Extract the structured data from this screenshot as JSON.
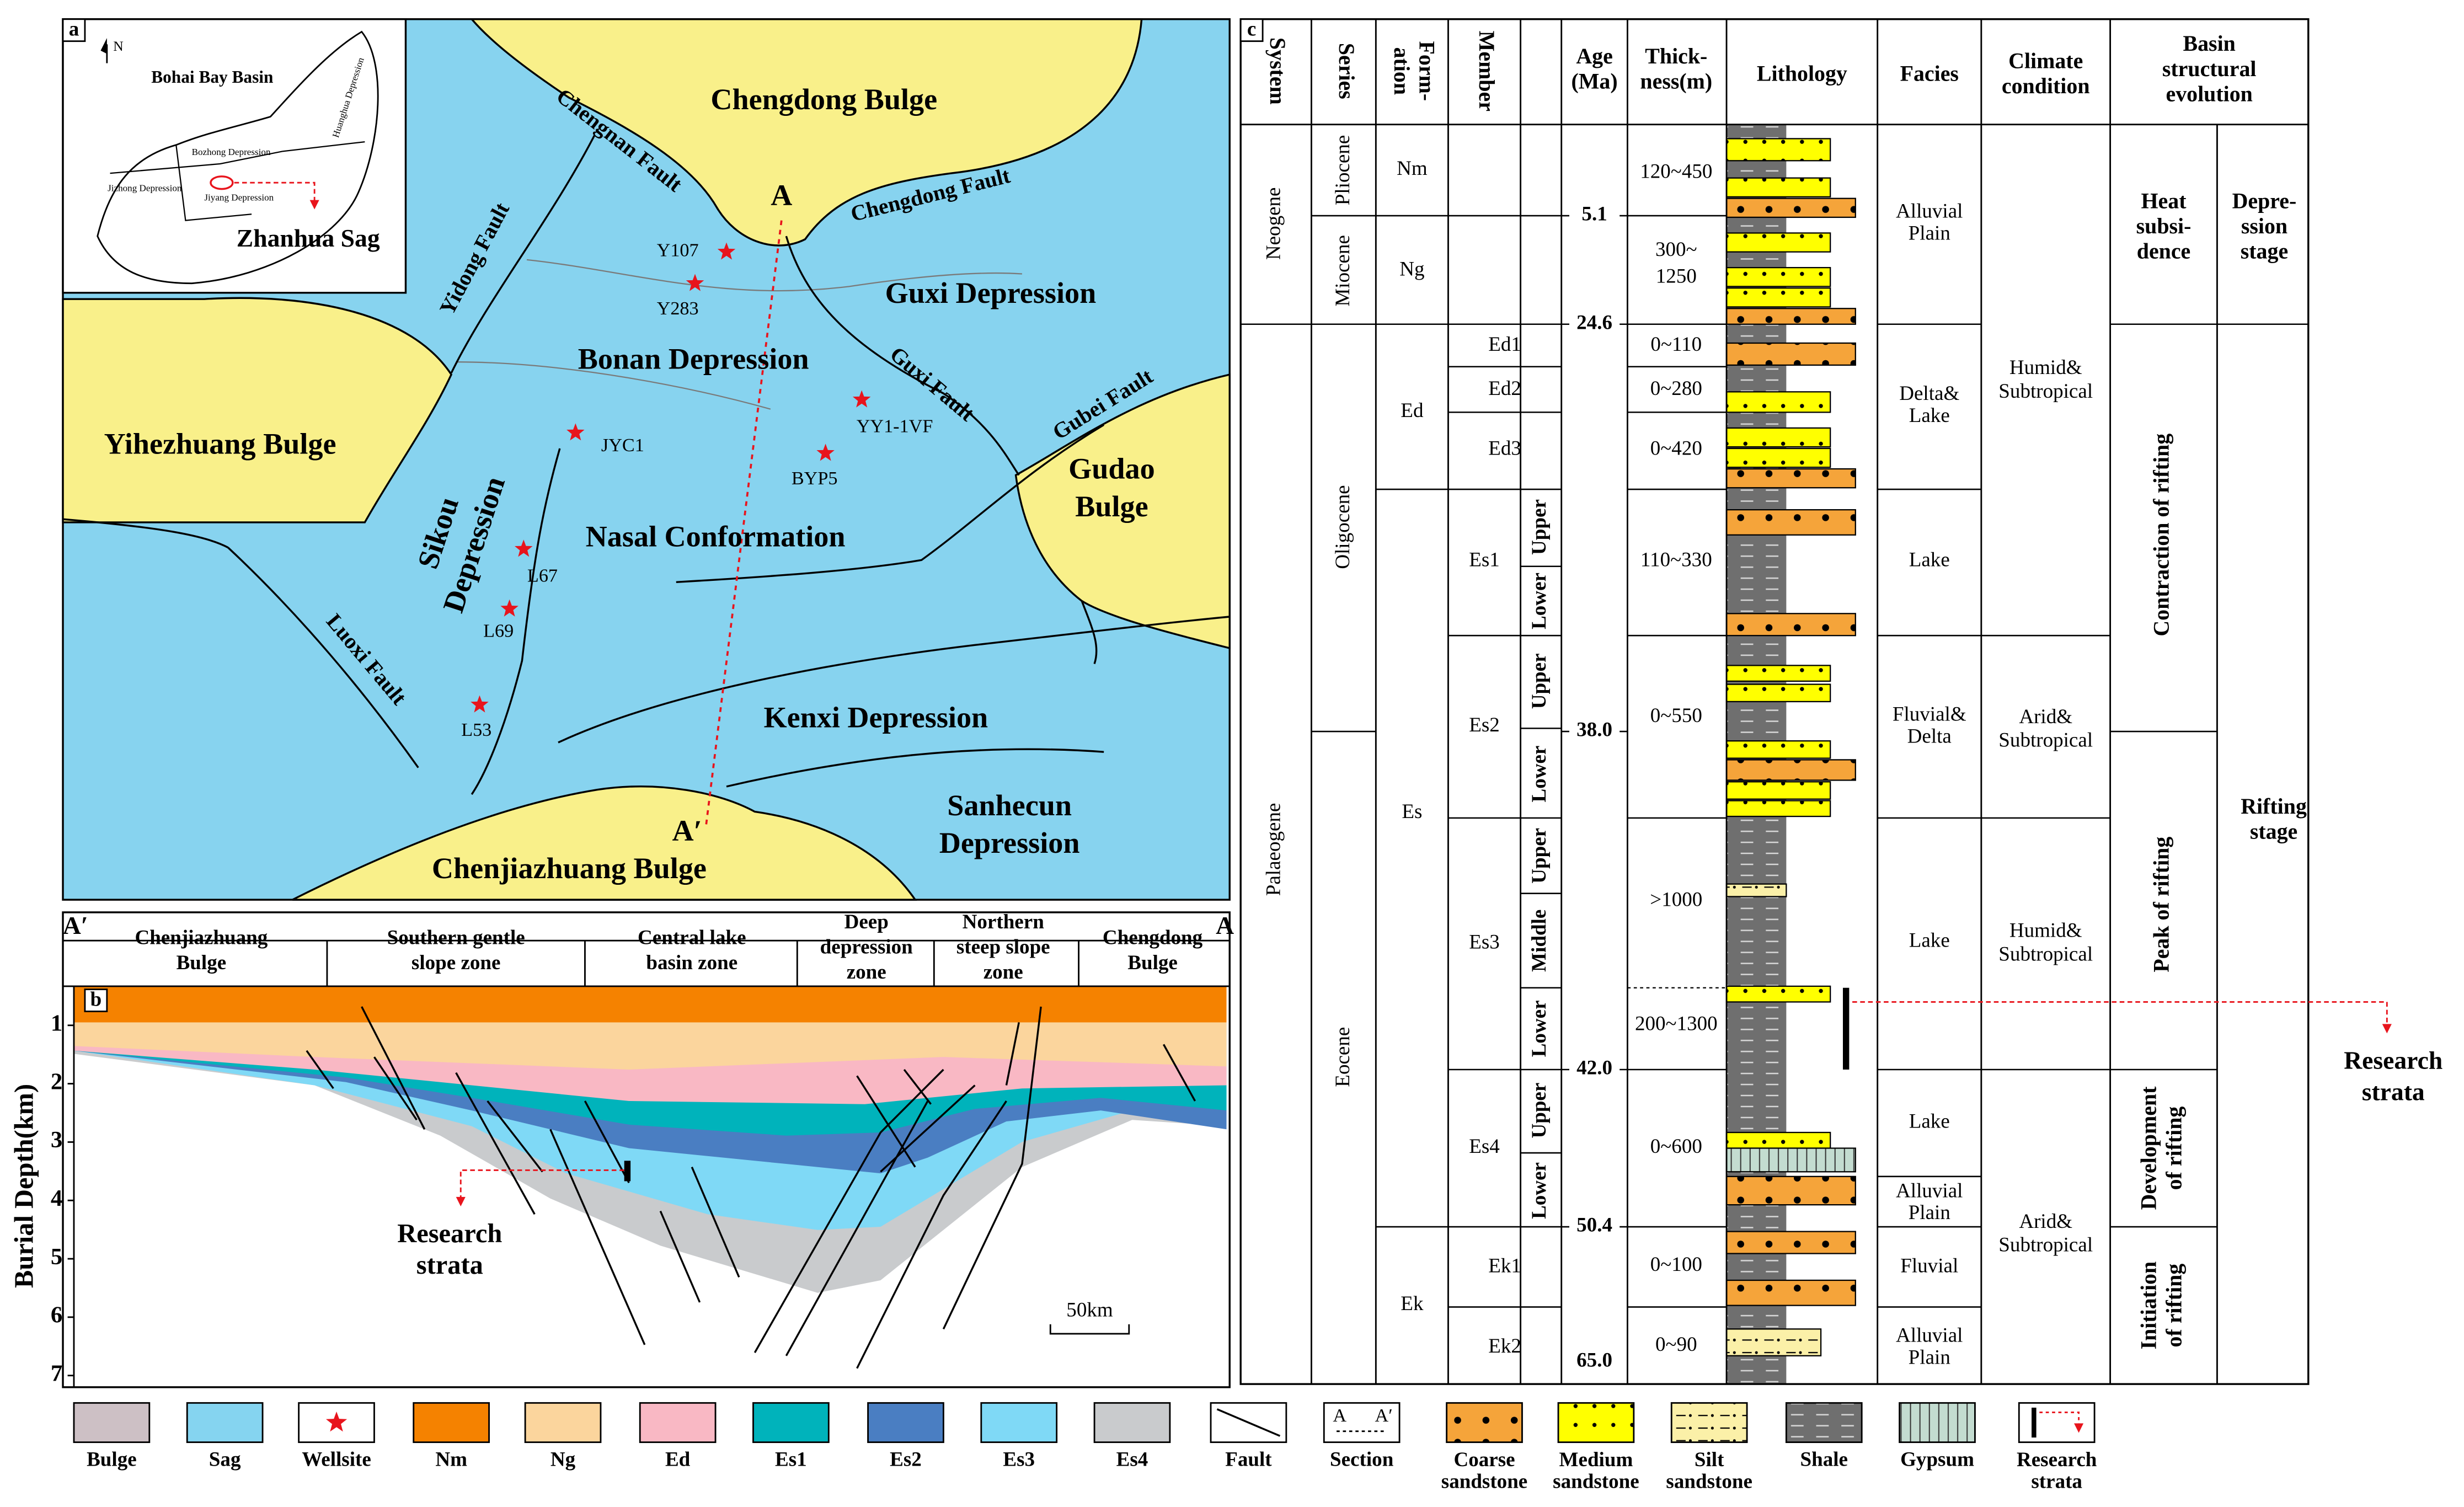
{
  "panel_a": {
    "label": "a",
    "inset": {
      "north": "N",
      "title": "Bohai Bay Basin",
      "depressions": [
        "Huanghua Depression",
        "Bozhong Depression",
        "Jizhong Depression",
        "Jiyang Depression"
      ],
      "sag": "Zhanhua Sag"
    },
    "units": [
      "Chengdong Bulge",
      "Guxi Depression",
      "Bonan Depression",
      "Yihezhuang Bulge",
      [
        "Gudao",
        "Bulge"
      ],
      [
        "Sikou",
        "Depression"
      ],
      "Nasal Conformation",
      "Kenxi Depression",
      [
        "Sanhecun",
        "Depression"
      ],
      "Chenjiazhuang Bulge"
    ],
    "faults": [
      "Chengnan Fault",
      "Chengdong Fault",
      "Yidong Fault",
      "Guxi Fault",
      "Gubei Fault",
      "Luoxi Fault"
    ],
    "section": [
      "A",
      "A′"
    ],
    "wells": [
      "Y107",
      "Y283",
      "JYC1",
      "YY1-1VF",
      "BYP5",
      "L67",
      "L69",
      "L53"
    ]
  },
  "panel_b": {
    "label": "b",
    "ends": [
      "A′",
      "A"
    ],
    "zones": [
      [
        "Chenjiazhuang",
        "Bulge"
      ],
      [
        "Southern gentle",
        "slope zone"
      ],
      [
        "Central lake",
        "basin zone"
      ],
      [
        "Deep",
        "depression",
        "zone"
      ],
      [
        "Northern",
        "steep slope",
        "zone"
      ],
      [
        "Chengdong",
        "Bulge"
      ]
    ],
    "depth_axis": {
      "label": "Burial Depth(km)",
      "lim": [
        0.33,
        7.2
      ],
      "ticks": [
        1,
        2,
        3,
        4,
        5,
        6,
        7
      ]
    },
    "annotation": [
      "Research",
      "strata"
    ],
    "scale": "50km"
  },
  "panel_c": {
    "label": "c",
    "headers": [
      "System",
      "Series",
      [
        "Form-",
        "ation"
      ],
      "Member",
      [
        "Age",
        "(Ma)"
      ],
      [
        "Thick-",
        "ness(m)"
      ],
      "Lithology",
      "Facies",
      [
        "Climate",
        "condition"
      ],
      [
        "Basin",
        "structural",
        "evolution"
      ]
    ],
    "systems": [
      "Neogene",
      "Palaeogene"
    ],
    "series": [
      "Pliocene",
      "Miocene",
      "Oligocene",
      "Eocene"
    ],
    "formations": [
      "Nm",
      "Ng",
      "Ed",
      "Es",
      "Ek"
    ],
    "members": [
      "Ed1",
      "Ed2",
      "Ed3",
      "Es1",
      "Es2",
      "Es3",
      "Es4",
      "Ek1",
      "Ek2"
    ],
    "submembers": [
      "Upper",
      "Lower",
      "Upper",
      "Lower",
      "Upper",
      "Middle",
      "Lower",
      "Upper",
      "Lower"
    ],
    "ages": [
      "5.1",
      "24.6",
      "38.0",
      "42.0",
      "50.4",
      "65.0"
    ],
    "thickness": [
      "120~450",
      [
        "300~",
        "1250"
      ],
      "0~110",
      "0~280",
      "0~420",
      "110~330",
      "0~550",
      ">1000",
      "200~1300",
      "0~600",
      "0~100",
      "0~90"
    ],
    "facies": [
      [
        "Alluvial",
        "Plain"
      ],
      [
        "Delta&",
        "Lake"
      ],
      "Lake",
      [
        "Fluvial&",
        "Delta"
      ],
      "Lake",
      "Lake",
      [
        "Alluvial",
        "Plain"
      ],
      "Fluvial",
      [
        "Alluvial",
        "Plain"
      ]
    ],
    "climate": [
      [
        "Humid&",
        "Subtropical"
      ],
      [
        "Arid&",
        "Subtropical"
      ],
      [
        "Humid&",
        "Subtropical"
      ],
      [
        "Arid&",
        "Subtropical"
      ]
    ],
    "evolution": [
      [
        "Heat",
        "subsi-",
        "dence"
      ],
      "Contraction of rifting",
      "Peak of rifting",
      [
        "Development",
        "of rifting"
      ],
      [
        "Initiation",
        "of rifting"
      ]
    ],
    "stages": [
      [
        "Depre-",
        "ssion",
        "stage"
      ],
      [
        "Rifting",
        "stage"
      ]
    ],
    "annotation": [
      "Research",
      "strata"
    ]
  },
  "legend": {
    "items": [
      "Bulge",
      "Sag",
      "Wellsite",
      "Nm",
      "Ng",
      "Ed",
      "Es1",
      "Es2",
      "Es3",
      "Es4",
      "Fault",
      "Section",
      [
        "Coarse",
        "sandstone"
      ],
      [
        "Medium",
        "sandstone"
      ],
      [
        "Silt",
        "sandstone"
      ],
      "Shale",
      "Gypsum",
      [
        "Research",
        "strata"
      ]
    ],
    "section_symbol": [
      "A",
      "A′"
    ]
  }
}
